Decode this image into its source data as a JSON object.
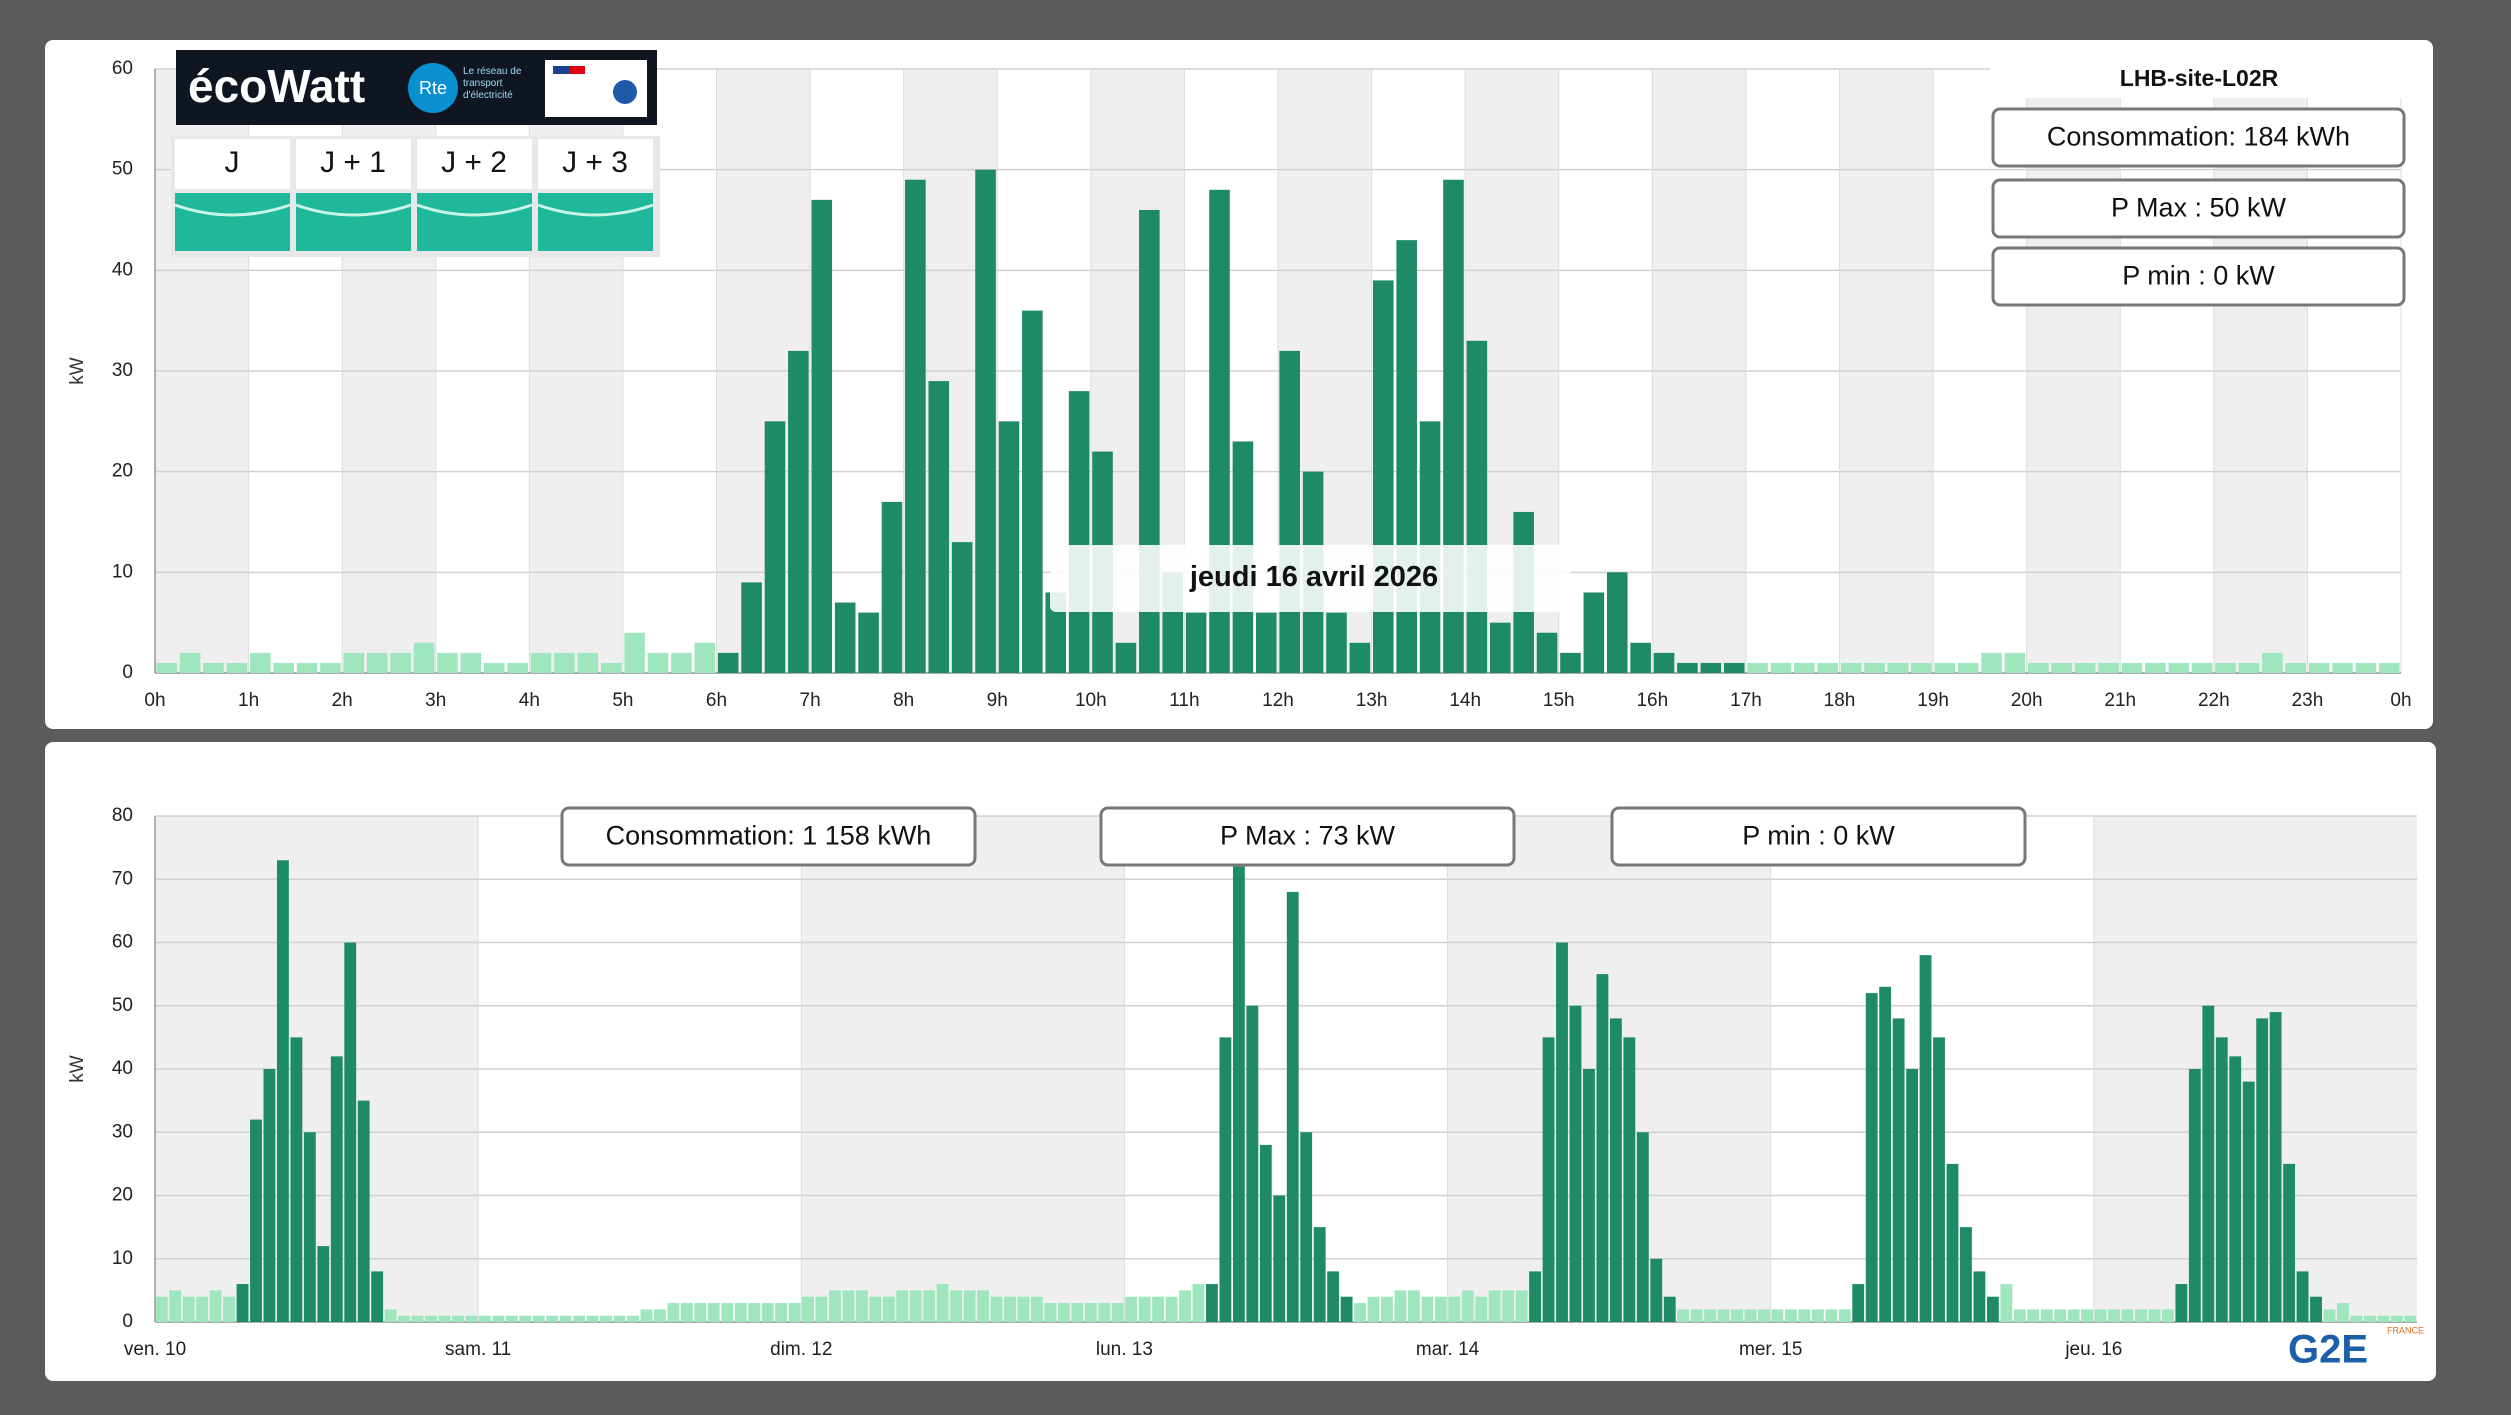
{
  "ecowatt": {
    "brand": "écoWatt",
    "rte": "Rte",
    "tagline": "Le réseau de transport d'électricité",
    "days": [
      "J",
      "J + 1",
      "J + 2",
      "J + 3"
    ]
  },
  "logo": {
    "name": "G2E",
    "country": "FRANCE"
  },
  "chart_data": [
    {
      "type": "bar",
      "title": "LHB-site-L02R",
      "y_label": "kW",
      "annotations": [
        "Consommation: 184 kWh",
        "P Max :  50 kW",
        "P min : 0 kW"
      ],
      "tooltip": "jeudi 16 avril 2026",
      "xlim": [
        0,
        24
      ],
      "ylim": [
        0,
        60
      ],
      "grid": true,
      "yticks": [
        0,
        10,
        20,
        30,
        40,
        50,
        60
      ],
      "xticks": [
        {
          "value": 0,
          "label": "0h"
        },
        {
          "value": 1,
          "label": "1h"
        },
        {
          "value": 2,
          "label": "2h"
        },
        {
          "value": 3,
          "label": "3h"
        },
        {
          "value": 4,
          "label": "4h"
        },
        {
          "value": 5,
          "label": "5h"
        },
        {
          "value": 6,
          "label": "6h"
        },
        {
          "value": 7,
          "label": "7h"
        },
        {
          "value": 8,
          "label": "8h"
        },
        {
          "value": 9,
          "label": "9h"
        },
        {
          "value": 10,
          "label": "10h"
        },
        {
          "value": 11,
          "label": "11h"
        },
        {
          "value": 12,
          "label": "12h"
        },
        {
          "value": 13,
          "label": "13h"
        },
        {
          "value": 14,
          "label": "14h"
        },
        {
          "value": 15,
          "label": "15h"
        },
        {
          "value": 16,
          "label": "16h"
        },
        {
          "value": 17,
          "label": "17h"
        },
        {
          "value": 18,
          "label": "18h"
        },
        {
          "value": 19,
          "label": "19h"
        },
        {
          "value": 20,
          "label": "20h"
        },
        {
          "value": 21,
          "label": "21h"
        },
        {
          "value": 22,
          "label": "22h"
        },
        {
          "value": 23,
          "label": "23h"
        },
        {
          "value": 24,
          "label": "0h"
        }
      ],
      "bar_width": 0.25,
      "series": [
        {
          "color": "#9fe6bf",
          "x": [
            0,
            0.25,
            0.5,
            0.75,
            1,
            1.25,
            1.5,
            1.75,
            2,
            2.25,
            2.5,
            2.75,
            3,
            3.25,
            3.5,
            3.75,
            4,
            4.25,
            4.5,
            4.75,
            5,
            5.25,
            5.5,
            5.75,
            17,
            17.25,
            17.5,
            17.75,
            18,
            18.25,
            18.5,
            18.75,
            19,
            19.25,
            19.5,
            19.75,
            20,
            20.25,
            20.5,
            20.75,
            21,
            21.25,
            21.5,
            21.75,
            22,
            22.25,
            22.5,
            22.75,
            23,
            23.25,
            23.5,
            23.75
          ],
          "values": [
            1,
            2,
            1,
            1,
            2,
            1,
            1,
            1,
            2,
            2,
            2,
            3,
            2,
            2,
            1,
            1,
            2,
            2,
            2,
            1,
            4,
            2,
            2,
            3,
            1,
            1,
            1,
            1,
            1,
            1,
            1,
            1,
            1,
            1,
            2,
            2,
            1,
            1,
            1,
            1,
            1,
            1,
            1,
            1,
            1,
            1,
            2,
            1,
            1,
            1,
            1,
            1
          ]
        },
        {
          "color": "#1f8a66",
          "x": [
            6,
            6.25,
            6.5,
            6.75,
            7,
            7.25,
            7.5,
            7.75,
            8,
            8.25,
            8.5,
            8.75,
            9,
            9.25,
            9.5,
            9.75,
            10,
            10.25,
            10.5,
            10.75,
            11,
            11.25,
            11.5,
            11.75,
            12,
            12.25,
            12.5,
            12.75,
            13,
            13.25,
            13.5,
            13.75,
            14,
            14.25,
            14.5,
            14.75,
            15,
            15.25,
            15.5,
            15.75,
            16,
            16.25,
            16.5,
            16.75
          ],
          "values": [
            2,
            9,
            25,
            32,
            47,
            7,
            6,
            17,
            49,
            29,
            13,
            50,
            25,
            36,
            8,
            28,
            22,
            3,
            46,
            10,
            6,
            48,
            23,
            6,
            32,
            20,
            6,
            3,
            39,
            43,
            25,
            49,
            33,
            5,
            16,
            4,
            2,
            8,
            10,
            3,
            2,
            1,
            1,
            1
          ]
        }
      ]
    },
    {
      "type": "bar",
      "y_label": "kW",
      "annotations": [
        "Consommation: 1 158 kWh",
        "P Max :  73 kW",
        "P min : 0 kW"
      ],
      "xlim": [
        0,
        168
      ],
      "ylim": [
        0,
        80
      ],
      "grid": true,
      "yticks": [
        0,
        10,
        20,
        30,
        40,
        50,
        60,
        70,
        80
      ],
      "xticks": [
        {
          "value": 0,
          "label": "ven. 10"
        },
        {
          "value": 24,
          "label": "sam. 11"
        },
        {
          "value": 48,
          "label": "dim. 12"
        },
        {
          "value": 72,
          "label": "lun. 13"
        },
        {
          "value": 96,
          "label": "mar. 14"
        },
        {
          "value": 120,
          "label": "mer. 15"
        },
        {
          "value": 144,
          "label": "jeu. 16"
        }
      ],
      "bar_width": 1,
      "series": [
        {
          "color": "#9fe6bf",
          "x": [
            0,
            1,
            2,
            3,
            4,
            5,
            17,
            18,
            19,
            20,
            21,
            22,
            23,
            24,
            25,
            26,
            27,
            28,
            29,
            30,
            31,
            32,
            33,
            34,
            35,
            36,
            37,
            38,
            39,
            40,
            41,
            42,
            43,
            44,
            45,
            46,
            47,
            48,
            49,
            50,
            51,
            52,
            53,
            54,
            55,
            56,
            57,
            58,
            59,
            60,
            61,
            62,
            63,
            64,
            65,
            66,
            67,
            68,
            69,
            70,
            71,
            72,
            73,
            74,
            75,
            76,
            77,
            89,
            90,
            91,
            92,
            93,
            94,
            95,
            96,
            97,
            98,
            99,
            100,
            101,
            113,
            114,
            115,
            116,
            117,
            118,
            119,
            120,
            121,
            122,
            123,
            124,
            125,
            137,
            138,
            139,
            140,
            141,
            142,
            143,
            144,
            145,
            146,
            147,
            148,
            149,
            161,
            162,
            163,
            164,
            165,
            166,
            167
          ],
          "values": [
            4,
            5,
            4,
            4,
            5,
            4,
            2,
            1,
            1,
            1,
            1,
            1,
            1,
            1,
            1,
            1,
            1,
            1,
            1,
            1,
            1,
            1,
            1,
            1,
            1,
            2,
            2,
            3,
            3,
            3,
            3,
            3,
            3,
            3,
            3,
            3,
            3,
            4,
            4,
            5,
            5,
            5,
            4,
            4,
            5,
            5,
            5,
            6,
            5,
            5,
            5,
            4,
            4,
            4,
            4,
            3,
            3,
            3,
            3,
            3,
            3,
            4,
            4,
            4,
            4,
            5,
            6,
            3,
            4,
            4,
            5,
            5,
            4,
            4,
            4,
            5,
            4,
            5,
            5,
            5,
            2,
            2,
            2,
            2,
            2,
            2,
            2,
            2,
            2,
            2,
            2,
            2,
            2,
            6,
            2,
            2,
            2,
            2,
            2,
            2,
            2,
            2,
            2,
            2,
            2,
            2,
            2,
            3,
            1,
            1,
            1,
            1,
            1
          ]
        },
        {
          "color": "#1f8a66",
          "x": [
            6,
            7,
            8,
            9,
            10,
            11,
            12,
            13,
            14,
            15,
            16,
            78,
            79,
            80,
            81,
            82,
            83,
            84,
            85,
            86,
            87,
            88,
            102,
            103,
            104,
            105,
            106,
            107,
            108,
            109,
            110,
            111,
            112,
            126,
            127,
            128,
            129,
            130,
            131,
            132,
            133,
            134,
            135,
            136,
            150,
            151,
            152,
            153,
            154,
            155,
            156,
            157,
            158,
            159,
            160
          ],
          "values": [
            6,
            32,
            40,
            73,
            45,
            30,
            12,
            42,
            60,
            35,
            8,
            6,
            45,
            72,
            50,
            28,
            20,
            68,
            30,
            15,
            8,
            4,
            8,
            45,
            60,
            50,
            40,
            55,
            48,
            45,
            30,
            10,
            4,
            6,
            52,
            53,
            48,
            40,
            58,
            45,
            25,
            15,
            8,
            4,
            6,
            40,
            50,
            45,
            42,
            38,
            48,
            49,
            25,
            8,
            4
          ]
        }
      ]
    }
  ]
}
